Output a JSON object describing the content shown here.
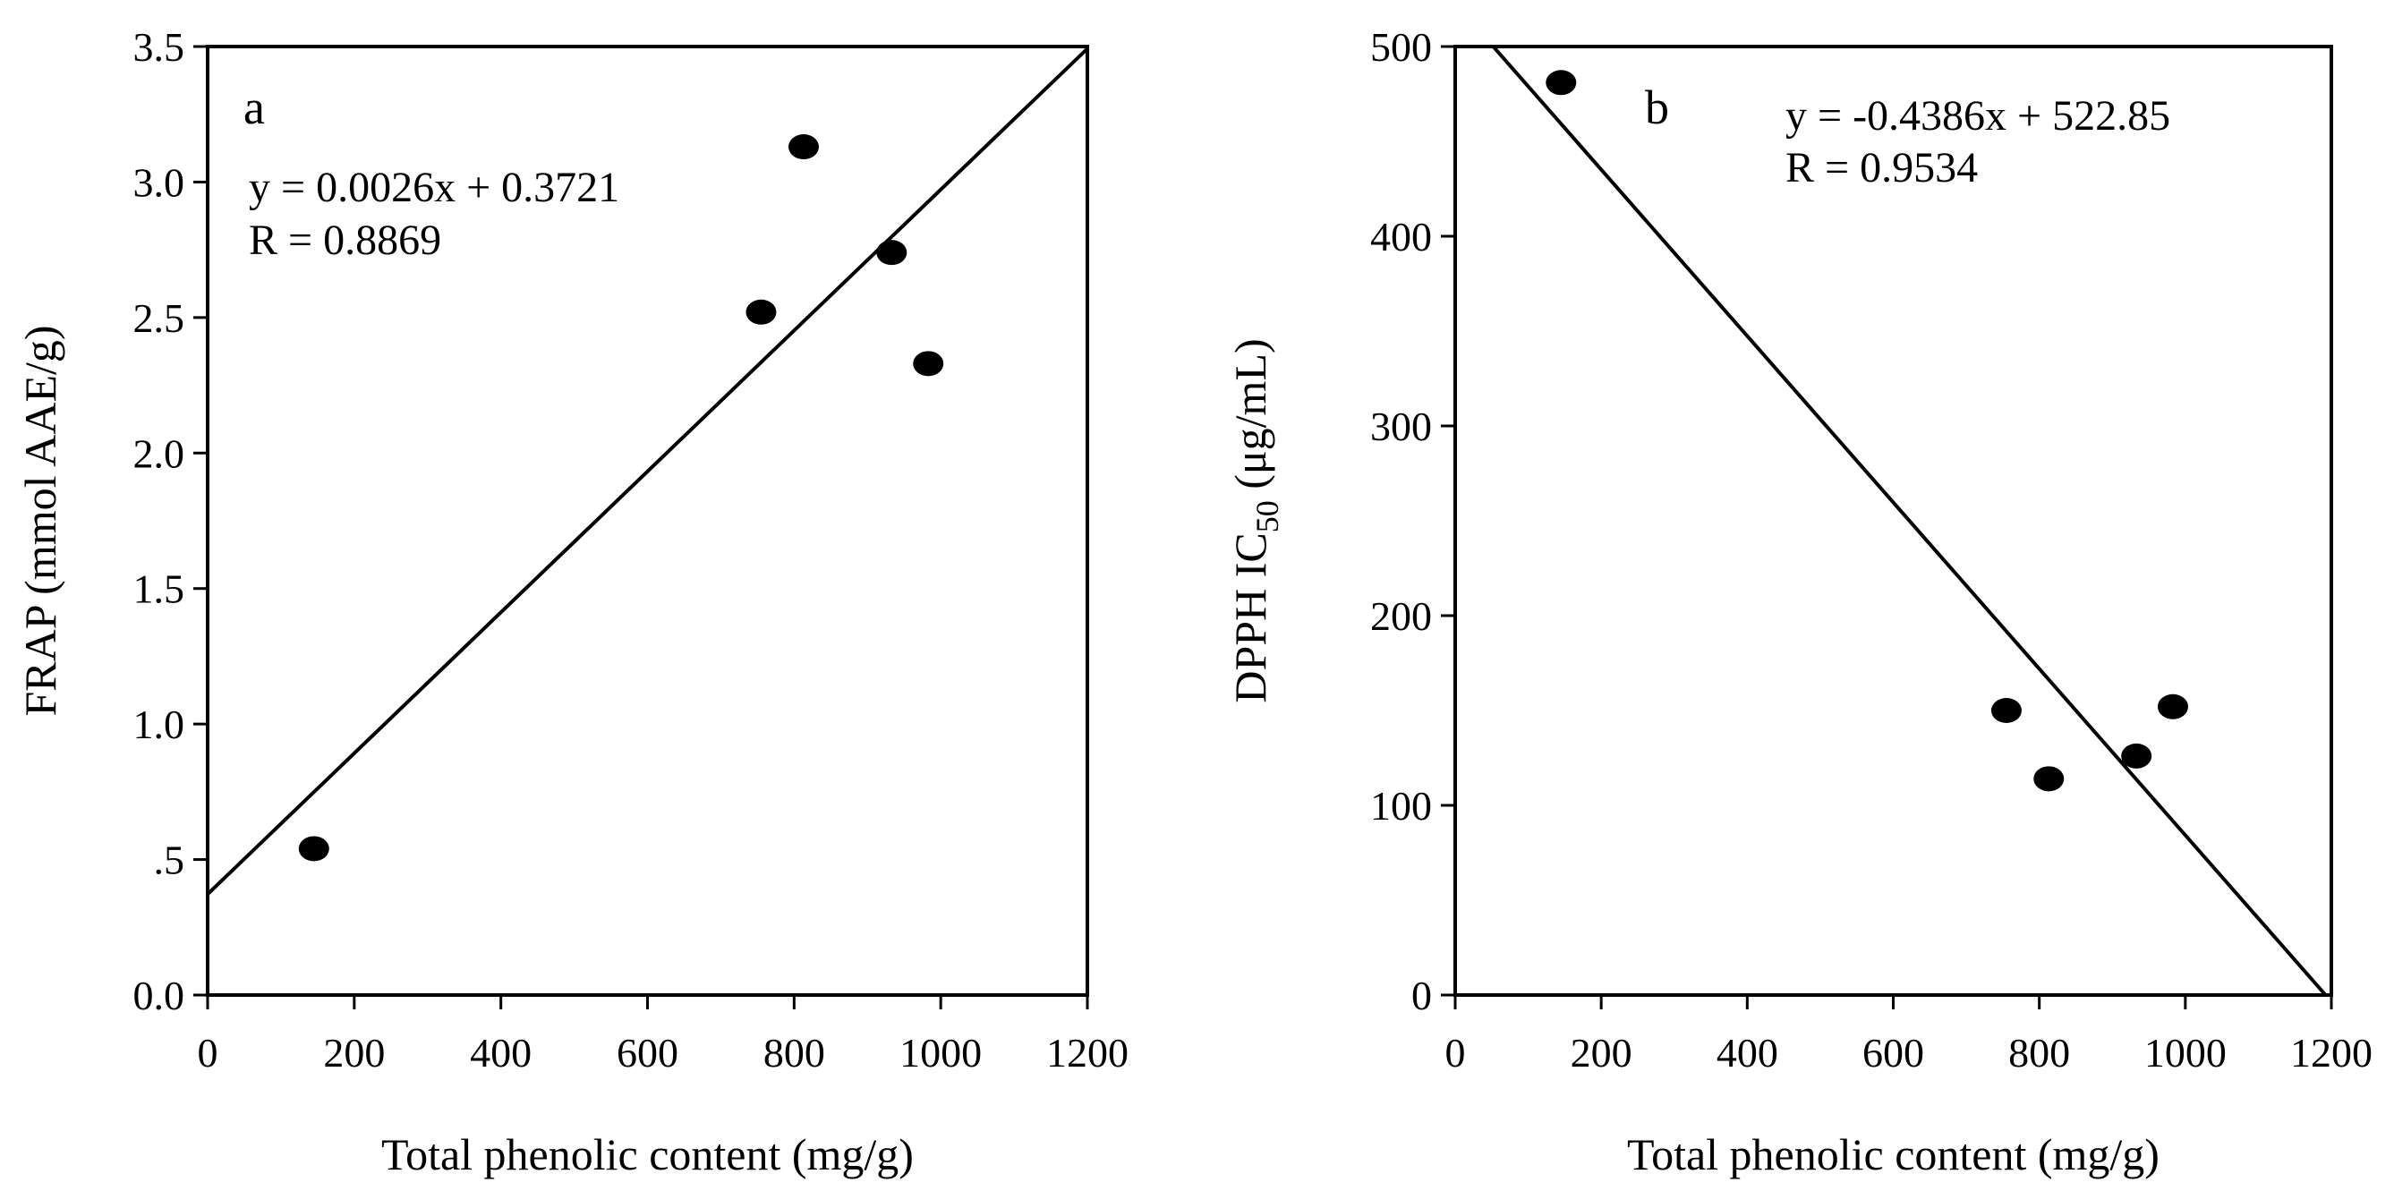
{
  "chart_data": [
    {
      "type": "scatter",
      "panel_label": "a",
      "xlabel": "Total phenolic content (mg/g)",
      "ylabel": "FRAP (mmol AAE/g)",
      "xlim": [
        0,
        1200
      ],
      "ylim": [
        0,
        3.5
      ],
      "xticks": [
        0,
        200,
        400,
        600,
        800,
        1000,
        1200
      ],
      "xtick_labels": [
        "0",
        "200",
        "400",
        "600",
        "800",
        "1000",
        "1200"
      ],
      "yticks": [
        0,
        0.5,
        1.0,
        1.5,
        2.0,
        2.5,
        3.0,
        3.5
      ],
      "ytick_labels": [
        "0.0",
        ".5",
        "1.0",
        "1.5",
        "2.0",
        "2.5",
        "3.0",
        "3.5"
      ],
      "points": [
        {
          "x": 145,
          "y": 0.54
        },
        {
          "x": 755,
          "y": 2.52
        },
        {
          "x": 813,
          "y": 3.13
        },
        {
          "x": 933,
          "y": 2.74
        },
        {
          "x": 983,
          "y": 2.33
        }
      ],
      "fit": {
        "slope": 0.0026,
        "intercept": 0.3721
      },
      "equation": "y = 0.0026x + 0.3721",
      "r_text": "R = 0.8869",
      "grid": false
    },
    {
      "type": "scatter",
      "panel_label": "b",
      "xlabel": "Total phenolic content (mg/g)",
      "ylabel_main": "DPPH IC",
      "ylabel_sub": "50",
      "ylabel_unit": " (μg/mL)",
      "xlim": [
        0,
        1200
      ],
      "ylim": [
        0,
        500
      ],
      "xticks": [
        0,
        200,
        400,
        600,
        800,
        1000,
        1200
      ],
      "xtick_labels": [
        "0",
        "200",
        "400",
        "600",
        "800",
        "1000",
        "1200"
      ],
      "yticks": [
        0,
        100,
        200,
        300,
        400,
        500
      ],
      "ytick_labels": [
        "0",
        "100",
        "200",
        "300",
        "400",
        "500"
      ],
      "points": [
        {
          "x": 145,
          "y": 481
        },
        {
          "x": 755,
          "y": 150
        },
        {
          "x": 813,
          "y": 114
        },
        {
          "x": 933,
          "y": 126
        },
        {
          "x": 983,
          "y": 152
        }
      ],
      "fit": {
        "slope": -0.4386,
        "intercept": 522.85
      },
      "equation": "y = -0.4386x + 522.85",
      "r_text": "R = 0.9534",
      "grid": false
    }
  ]
}
